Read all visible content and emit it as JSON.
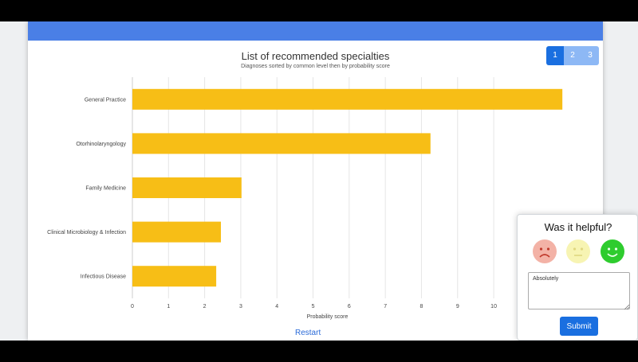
{
  "header": {
    "accent_color": "#4a7fe6"
  },
  "pagination": {
    "pages": [
      "1",
      "2",
      "3"
    ],
    "active": "1"
  },
  "chart_data": {
    "type": "bar",
    "orientation": "horizontal",
    "title": "List of recommended specialties",
    "subtitle": "Diagnoses sorted by common level then by probability score",
    "xlabel": "Probability score",
    "ylabel": "",
    "categories": [
      "General Practice",
      "Otorhinolaryngology",
      "Family Medicine",
      "Clinical Microbiology & Infection",
      "Infectious Disease"
    ],
    "values": [
      11.9,
      8.25,
      3.02,
      2.45,
      2.32
    ],
    "xlim": [
      0,
      13
    ],
    "xticks": [
      "0",
      "1",
      "2",
      "3",
      "4",
      "5",
      "6",
      "7",
      "8",
      "9",
      "10"
    ],
    "grid": true,
    "bar_color": "#f7be16"
  },
  "restart": {
    "label": "Restart"
  },
  "feedback": {
    "title": "Was it helpful?",
    "emojis": [
      "sad-face-icon",
      "neutral-face-icon",
      "happy-face-icon"
    ],
    "text_value": "Absolutely",
    "submit_label": "Submit"
  }
}
